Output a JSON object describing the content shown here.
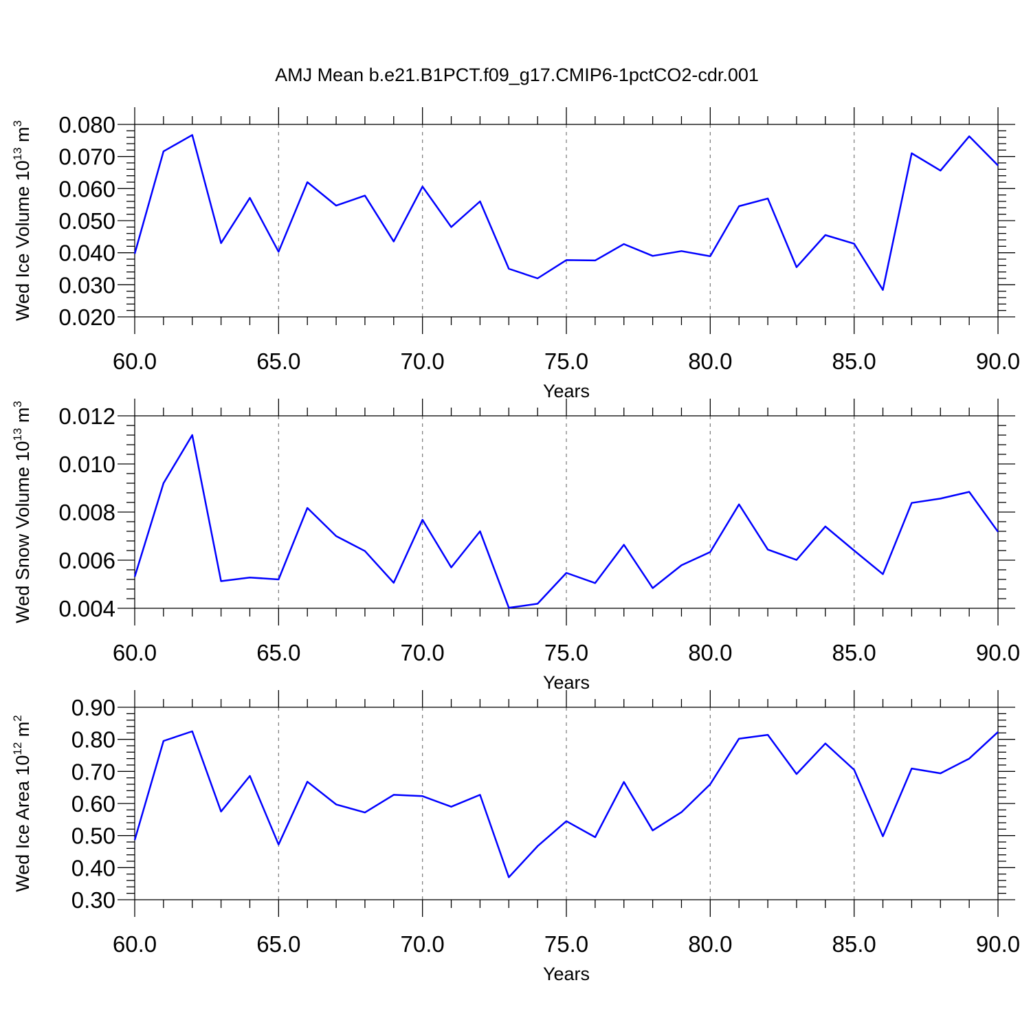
{
  "title": "AMJ Mean b.e21.B1PCT.f09_g17.CMIP6-1pctCO2-cdr.001",
  "colors": {
    "series": "#0000ff",
    "grid": "#777777",
    "axes": "#000000"
  },
  "chart_data": [
    {
      "type": "line",
      "ylabel_text": "Wed Ice Volume 10",
      "ylabel_exp": "13",
      "ylabel_unit": " m",
      "ylabel_unit_exp": "3",
      "xlabel": "Years",
      "xlim": [
        60,
        90
      ],
      "ylim": [
        0.02,
        0.08
      ],
      "xticks": [
        "60.0",
        "65.0",
        "70.0",
        "75.0",
        "80.0",
        "85.0",
        "90.0"
      ],
      "xtick_values": [
        60,
        65,
        70,
        75,
        80,
        85,
        90
      ],
      "yticks": [
        "0.020",
        "0.030",
        "0.040",
        "0.050",
        "0.060",
        "0.070",
        "0.080"
      ],
      "ytick_values": [
        0.02,
        0.03,
        0.04,
        0.05,
        0.06,
        0.07,
        0.08
      ],
      "grid": "vertical dashed at major x ticks",
      "x": [
        60,
        61,
        62,
        63,
        64,
        65,
        66,
        67,
        68,
        69,
        70,
        71,
        72,
        73,
        74,
        75,
        76,
        77,
        78,
        79,
        80,
        81,
        82,
        83,
        84,
        85,
        86,
        87,
        88,
        89,
        90
      ],
      "values": [
        0.0397,
        0.0716,
        0.0767,
        0.043,
        0.0571,
        0.0403,
        0.062,
        0.0547,
        0.0578,
        0.0435,
        0.0606,
        0.048,
        0.056,
        0.035,
        0.032,
        0.0377,
        0.0376,
        0.0427,
        0.039,
        0.0405,
        0.0389,
        0.0545,
        0.0569,
        0.0355,
        0.0455,
        0.0428,
        0.0284,
        0.071,
        0.0656,
        0.0763,
        0.0672
      ]
    },
    {
      "type": "line",
      "ylabel_text": "Wed Snow Volume 10",
      "ylabel_exp": "13",
      "ylabel_unit": " m",
      "ylabel_unit_exp": "3",
      "xlabel": "Years",
      "xlim": [
        60,
        90
      ],
      "ylim": [
        0.004,
        0.012
      ],
      "xticks": [
        "60.0",
        "65.0",
        "70.0",
        "75.0",
        "80.0",
        "85.0",
        "90.0"
      ],
      "xtick_values": [
        60,
        65,
        70,
        75,
        80,
        85,
        90
      ],
      "yticks": [
        "0.004",
        "0.006",
        "0.008",
        "0.010",
        "0.012"
      ],
      "ytick_values": [
        0.004,
        0.006,
        0.008,
        0.01,
        0.012
      ],
      "grid": "vertical dashed at major x ticks",
      "x": [
        60,
        61,
        62,
        63,
        64,
        65,
        66,
        67,
        68,
        69,
        70,
        71,
        72,
        73,
        74,
        75,
        76,
        77,
        78,
        79,
        80,
        81,
        82,
        83,
        84,
        85,
        86,
        87,
        88,
        89,
        90
      ],
      "values": [
        0.00531,
        0.0092,
        0.0112,
        0.00513,
        0.00528,
        0.0052,
        0.00817,
        0.007,
        0.00638,
        0.00506,
        0.00768,
        0.0057,
        0.0072,
        0.00402,
        0.00419,
        0.00547,
        0.00505,
        0.00664,
        0.00484,
        0.00579,
        0.00634,
        0.00832,
        0.00644,
        0.00601,
        0.0074,
        0.0064,
        0.00542,
        0.00838,
        0.00856,
        0.00884,
        0.00718
      ]
    },
    {
      "type": "line",
      "ylabel_text": "Wed Ice Area 10",
      "ylabel_exp": "12",
      "ylabel_unit": " m",
      "ylabel_unit_exp": "2",
      "xlabel": "Years",
      "xlim": [
        60,
        90
      ],
      "ylim": [
        0.3,
        0.9
      ],
      "xticks": [
        "60.0",
        "65.0",
        "70.0",
        "75.0",
        "80.0",
        "85.0",
        "90.0"
      ],
      "xtick_values": [
        60,
        65,
        70,
        75,
        80,
        85,
        90
      ],
      "yticks": [
        "0.30",
        "0.40",
        "0.50",
        "0.60",
        "0.70",
        "0.80",
        "0.90"
      ],
      "ytick_values": [
        0.3,
        0.4,
        0.5,
        0.6,
        0.7,
        0.8,
        0.9
      ],
      "grid": "vertical dashed at major x ticks",
      "x": [
        60,
        61,
        62,
        63,
        64,
        65,
        66,
        67,
        68,
        69,
        70,
        71,
        72,
        73,
        74,
        75,
        76,
        77,
        78,
        79,
        80,
        81,
        82,
        83,
        84,
        85,
        86,
        87,
        88,
        89,
        90
      ],
      "values": [
        0.486,
        0.795,
        0.825,
        0.575,
        0.686,
        0.472,
        0.668,
        0.597,
        0.572,
        0.627,
        0.623,
        0.59,
        0.627,
        0.37,
        0.467,
        0.545,
        0.495,
        0.667,
        0.516,
        0.573,
        0.66,
        0.802,
        0.814,
        0.692,
        0.787,
        0.705,
        0.498,
        0.709,
        0.694,
        0.74,
        0.823
      ]
    }
  ]
}
